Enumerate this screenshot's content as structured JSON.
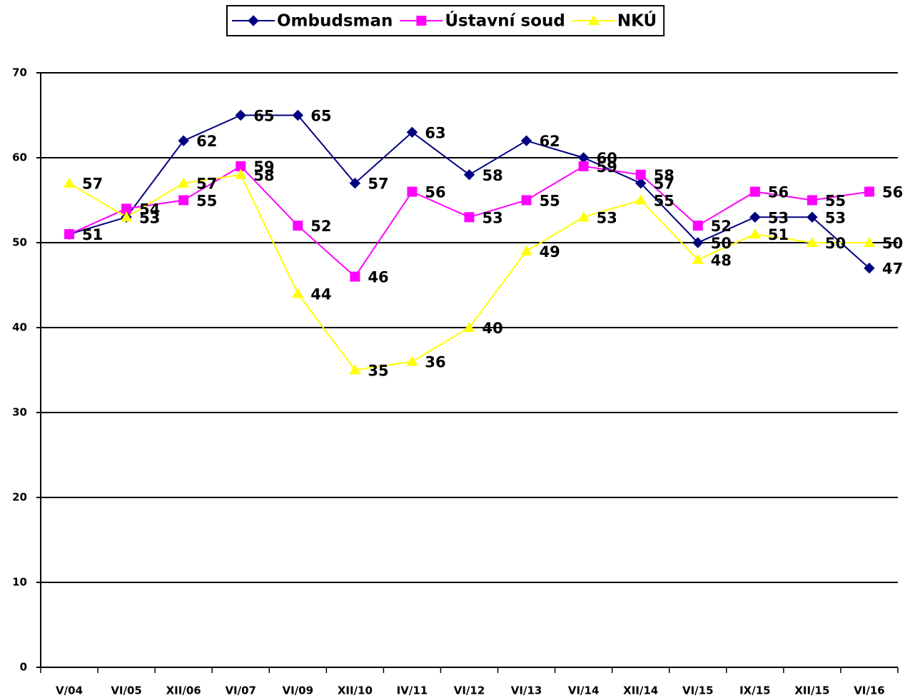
{
  "chart_data": {
    "type": "line",
    "categories": [
      "V/04",
      "VI/05",
      "XII/06",
      "VI/07",
      "VI/09",
      "XII/10",
      "IV/11",
      "VI/12",
      "VI/13",
      "VI/14",
      "XII/14",
      "VI/15",
      "IX/15",
      "XII/15",
      "VI/16"
    ],
    "series": [
      {
        "name": "Ombudsman",
        "color": "#000080",
        "marker": "diamond",
        "values": [
          51,
          53,
          62,
          65,
          65,
          57,
          63,
          58,
          62,
          60,
          57,
          50,
          53,
          53,
          47
        ]
      },
      {
        "name": "Ústavní soud",
        "color": "#ff00ff",
        "marker": "square",
        "values": [
          51,
          54,
          55,
          59,
          52,
          46,
          56,
          53,
          55,
          59,
          58,
          52,
          56,
          55,
          56
        ]
      },
      {
        "name": "NKÚ",
        "color": "#ffff00",
        "marker": "triangle",
        "values": [
          57,
          53,
          57,
          58,
          44,
          35,
          36,
          40,
          49,
          53,
          55,
          48,
          51,
          50,
          50
        ]
      }
    ],
    "ylim": [
      0,
      70
    ],
    "yticks": [
      0,
      10,
      20,
      30,
      40,
      50,
      60,
      70
    ],
    "grid": true,
    "legend": "top"
  }
}
